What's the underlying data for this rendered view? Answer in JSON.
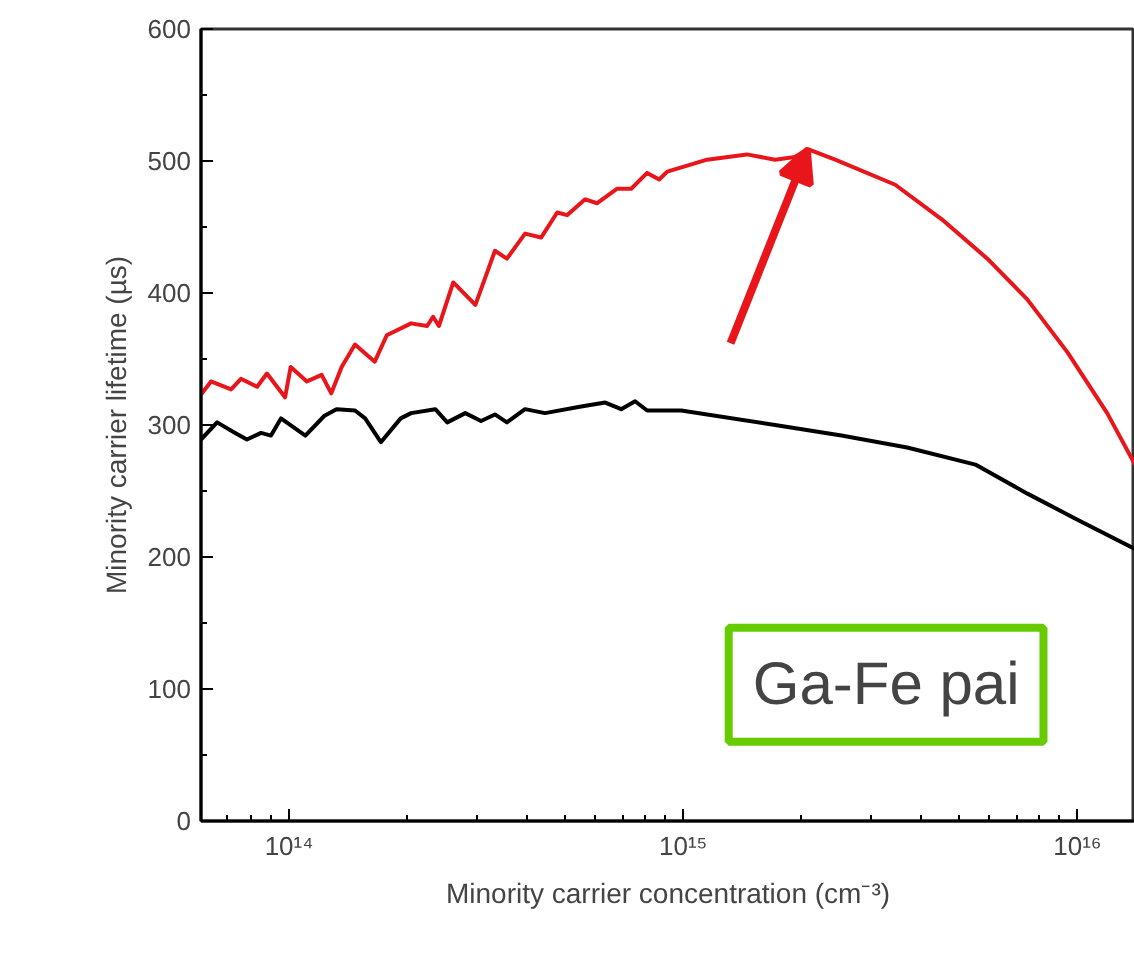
{
  "chart_data": {
    "type": "line",
    "xlabel": "Minority carrier concentration (cm⁻³)",
    "ylabel": "Minority carrier lifetime (µs)",
    "log": "x",
    "grid": false,
    "line_style": "solid",
    "marker": "none",
    "xlim": [
      59800000000000.0,
      1.4e+16
    ],
    "ylim": [
      0,
      600
    ],
    "xticks": [
      {
        "value": 100000000000000.0,
        "label": "10¹⁴"
      },
      {
        "value": 1000000000000000.0,
        "label": "10¹⁵"
      },
      {
        "value": 1e+16,
        "label": "10¹⁶"
      }
    ],
    "yticks": [
      0,
      100,
      200,
      300,
      400,
      500,
      600
    ],
    "annotations": [
      "Ga-Fe pai"
    ],
    "series": [
      {
        "color": "#e8161b",
        "x": [
          59800000000000.0,
          63400000000000.0,
          71300000000000.0,
          75500000000000.0,
          83000000000000.0,
          87900000000000.0,
          97700000000000.0,
          101000000000000.0,
          111000000000000.0,
          121000000000000.0,
          128000000000000.0,
          136000000000000.0,
          147000000000000.0,
          165000000000000.0,
          177000000000000.0,
          204000000000000.0,
          224000000000000.0,
          232000000000000.0,
          240000000000000.0,
          261000000000000.0,
          297000000000000.0,
          333000000000000.0,
          357000000000000.0,
          397000000000000.0,
          436000000000000.0,
          479000000000000.0,
          508000000000000.0,
          564000000000000.0,
          605000000000000.0,
          680000000000000.0,
          738000000000000.0,
          810000000000000.0,
          869000000000000.0,
          911000000000000.0,
          1150000000000000.0,
          1450000000000000.0,
          1710000000000000.0,
          1920000000000000.0,
          2070000000000000.0,
          2430000000000000.0,
          3450000000000000.0,
          4520000000000000.0,
          5910000000000000.0,
          7470000000000000.0,
          9440000000000000.0,
          1.19e+16,
          1.4e+16
        ],
        "values": [
          323,
          333,
          327,
          335,
          329,
          339,
          321,
          344,
          333,
          338,
          324,
          344,
          361,
          348,
          368,
          377,
          375,
          382,
          375,
          408,
          391,
          432,
          426,
          445,
          442,
          461,
          459,
          471,
          468,
          479,
          479,
          491,
          486,
          492,
          501,
          505,
          501,
          503,
          509,
          501,
          482,
          456,
          426,
          395,
          355,
          309,
          270
        ]
      },
      {
        "color": "#000000",
        "x": [
          59800000000000.0,
          65700000000000.0,
          73000000000000.0,
          78200000000000.0,
          84900000000000.0,
          90000000000000.0,
          95400000000000.0,
          110000000000000.0,
          123000000000000.0,
          132000000000000.0,
          147000000000000.0,
          156000000000000.0,
          171000000000000.0,
          192000000000000.0,
          204000000000000.0,
          235000000000000.0,
          252000000000000.0,
          280000000000000.0,
          307000000000000.0,
          333000000000000.0,
          357000000000000.0,
          397000000000000.0,
          446000000000000.0,
          551000000000000.0,
          634000000000000.0,
          696000000000000.0,
          755000000000000.0,
          810000000000000.0,
          988000000000000.0,
          1710000000000000.0,
          2520000000000000.0,
          3700000000000000.0,
          5510000000000000.0,
          7470000000000000.0,
          9890000000000000.0,
          1.4e+16
        ],
        "values": [
          289,
          302,
          294,
          289,
          294,
          292,
          305,
          292,
          307,
          312,
          311,
          305,
          287,
          305,
          309,
          312,
          302,
          309,
          303,
          308,
          302,
          312,
          309,
          314,
          317,
          312,
          318,
          311,
          311,
          300,
          292,
          283,
          270,
          248,
          229,
          206
        ]
      }
    ]
  }
}
